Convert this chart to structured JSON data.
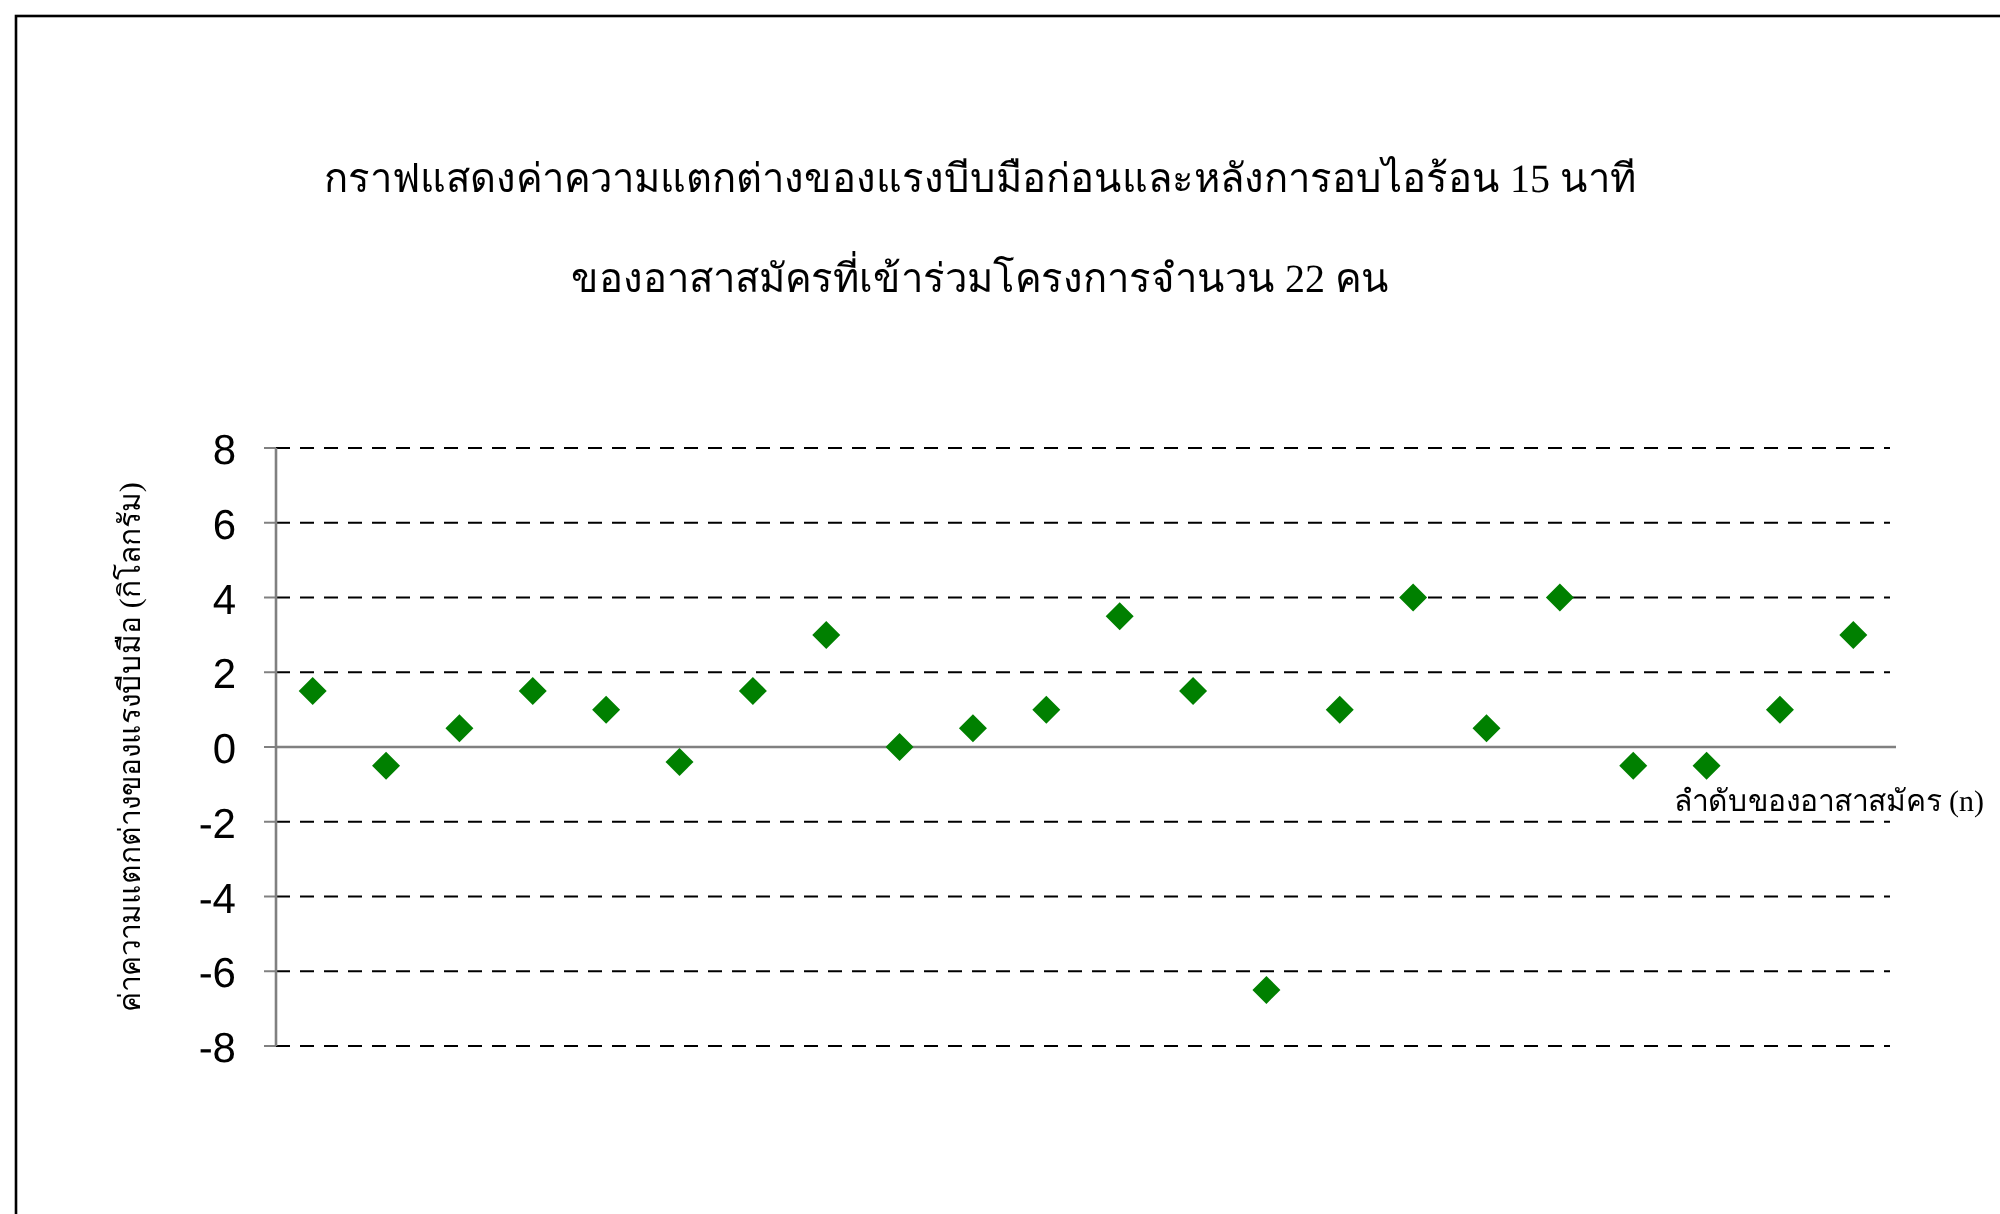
{
  "chart_data": {
    "type": "scatter",
    "title": "กราฟแสดงค่าความแตกต่างของแรงบีบมือก่อนและหลังการอบไอร้อน 15 นาที",
    "subtitle": "ของอาสาสมัครที่เข้าร่วมโครงการจำนวน  22  คน",
    "xlabel": "ลำดับของอาสาสมัคร (n)",
    "ylabel": "ค่าความแตกต่างของแรงบีบมือ (กิโลกรัม)",
    "categories": [
      null,
      null,
      null,
      null,
      null,
      null,
      null,
      null,
      null,
      null,
      null,
      null,
      null,
      null,
      null,
      null,
      null,
      null,
      null,
      null,
      null,
      null
    ],
    "series": [
      {
        "color": "#008000",
        "values": [
          1.5,
          -0.5,
          0.5,
          1.5,
          1,
          -0.4,
          1.5,
          3,
          0,
          0.5,
          1,
          3.5,
          1.5,
          -6.5,
          1,
          4,
          0.5,
          4,
          -0.5,
          -0.5,
          1,
          3
        ]
      }
    ],
    "ylim": [
      -8,
      8
    ],
    "yticks": [
      -8,
      -6,
      -4,
      -2,
      0,
      2,
      4,
      6,
      8
    ],
    "grid": "y",
    "marker": "diamond"
  }
}
